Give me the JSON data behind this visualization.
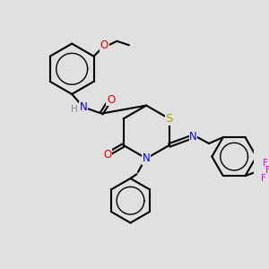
{
  "background_color": "#e0e0e0",
  "bond_color": "#000000",
  "bond_width": 1.5,
  "atom_colors": {
    "N": "#0000dd",
    "O": "#dd0000",
    "S": "#aaaa00",
    "F": "#dd00dd",
    "H_label": "#888888",
    "C": "#000000"
  },
  "font_size_atoms": 8.5,
  "font_size_small": 7.0,
  "fig_bg": "#e0e0e0"
}
